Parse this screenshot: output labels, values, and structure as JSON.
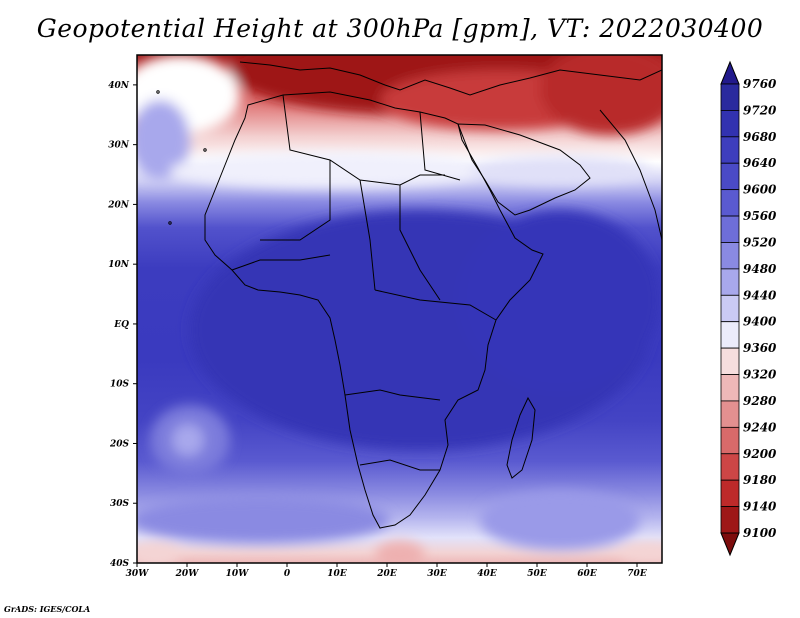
{
  "title": "Geopotential Height at 300hPa [gpm], VT: 2022030400",
  "credit": "GrADS: IGES/COLA",
  "map": {
    "lat_range": [
      -40,
      45
    ],
    "lon_range": [
      -30,
      75
    ],
    "lat_ticks": [
      "40N",
      "30N",
      "20N",
      "10N",
      "EQ",
      "10S",
      "20S",
      "30S",
      "40S"
    ],
    "lon_ticks": [
      "30W",
      "20W",
      "10W",
      "0",
      "10E",
      "20E",
      "30E",
      "40E",
      "50E",
      "60E",
      "70E"
    ]
  },
  "colorbar": {
    "levels": [
      "9760",
      "9720",
      "9680",
      "9640",
      "9600",
      "9560",
      "9520",
      "9480",
      "9440",
      "9400",
      "9360",
      "9320",
      "9280",
      "9240",
      "9200",
      "9180",
      "9140",
      "9100"
    ],
    "colors_top_to_bottom": [
      "#221a8c",
      "#2a2a9e",
      "#3232b0",
      "#3e3ebd",
      "#4a4ac6",
      "#5a5ad0",
      "#6e6ed8",
      "#8a8ae2",
      "#a8a8ec",
      "#cacaf4",
      "#ececfb",
      "#f6dede",
      "#eeb8b8",
      "#e39090",
      "#d86a6a",
      "#cd4646",
      "#bd2a2a",
      "#9e1717",
      "#7d0d0d"
    ]
  }
}
